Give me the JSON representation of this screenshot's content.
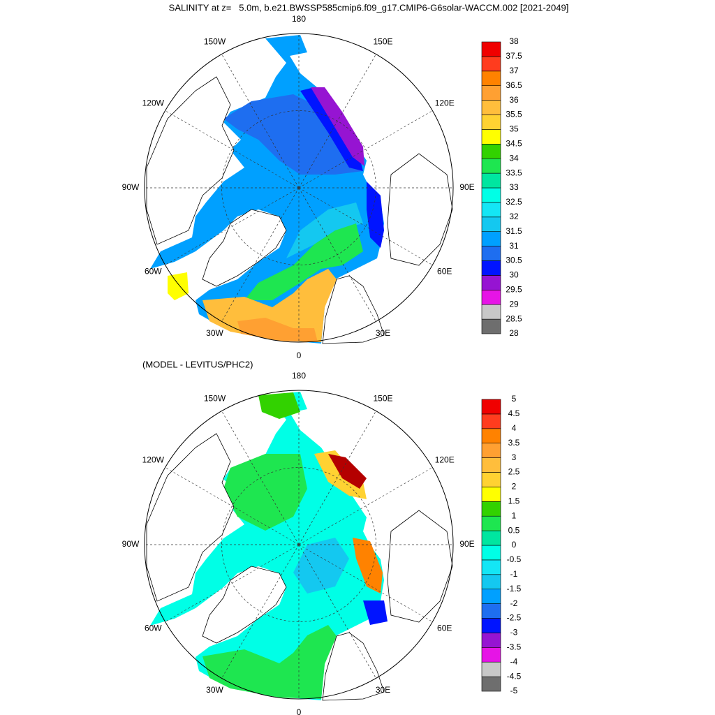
{
  "title": "SALINITY at z=   5.0m, b.e21.BWSSP585cmip6.f09_g17.CMIP6-G6solar-WACCM.002 [2021-2049]",
  "subtitle": "(MODEL - LEVITUS/PHC2)",
  "lon_labels": [
    "180",
    "150E",
    "120E",
    "90E",
    "60E",
    "30E",
    "0",
    "30W",
    "60W",
    "90W",
    "120W",
    "150W"
  ],
  "colorbars": [
    {
      "levels": [
        28,
        28.5,
        29,
        29.5,
        30,
        30.5,
        31,
        31.5,
        32,
        32.5,
        33,
        33.5,
        34,
        34.5,
        35,
        35.5,
        36,
        36.5,
        37,
        37.5,
        38
      ],
      "colors": [
        "#6e6e6e",
        "#c8c8c8",
        "#e614e6",
        "#9614d2",
        "#0014ff",
        "#1e6ef0",
        "#00a0ff",
        "#14c8f0",
        "#14e6f5",
        "#00ffe6",
        "#00e6a0",
        "#1ee650",
        "#32d200",
        "#ffff00",
        "#ffd232",
        "#ffbe3c",
        "#ffa032",
        "#ff8200",
        "#ff3c1e",
        "#f00000",
        "#b40000"
      ]
    },
    {
      "levels": [
        -5,
        -4.5,
        -4,
        -3.5,
        -3,
        -2.5,
        -2,
        -1.5,
        -1,
        -0.5,
        0,
        0.5,
        1,
        1.5,
        2,
        2.5,
        3,
        3.5,
        4,
        4.5,
        5
      ],
      "colors": [
        "#6e6e6e",
        "#c8c8c8",
        "#e614e6",
        "#9614d2",
        "#0014ff",
        "#1e6ef0",
        "#00a0ff",
        "#14c8f0",
        "#14e6f5",
        "#00ffe6",
        "#00e6a0",
        "#1ee650",
        "#32d200",
        "#ffff00",
        "#ffd232",
        "#ffbe3c",
        "#ffa032",
        "#ff8200",
        "#ff3c1e",
        "#f00000",
        "#b40000"
      ]
    }
  ]
}
